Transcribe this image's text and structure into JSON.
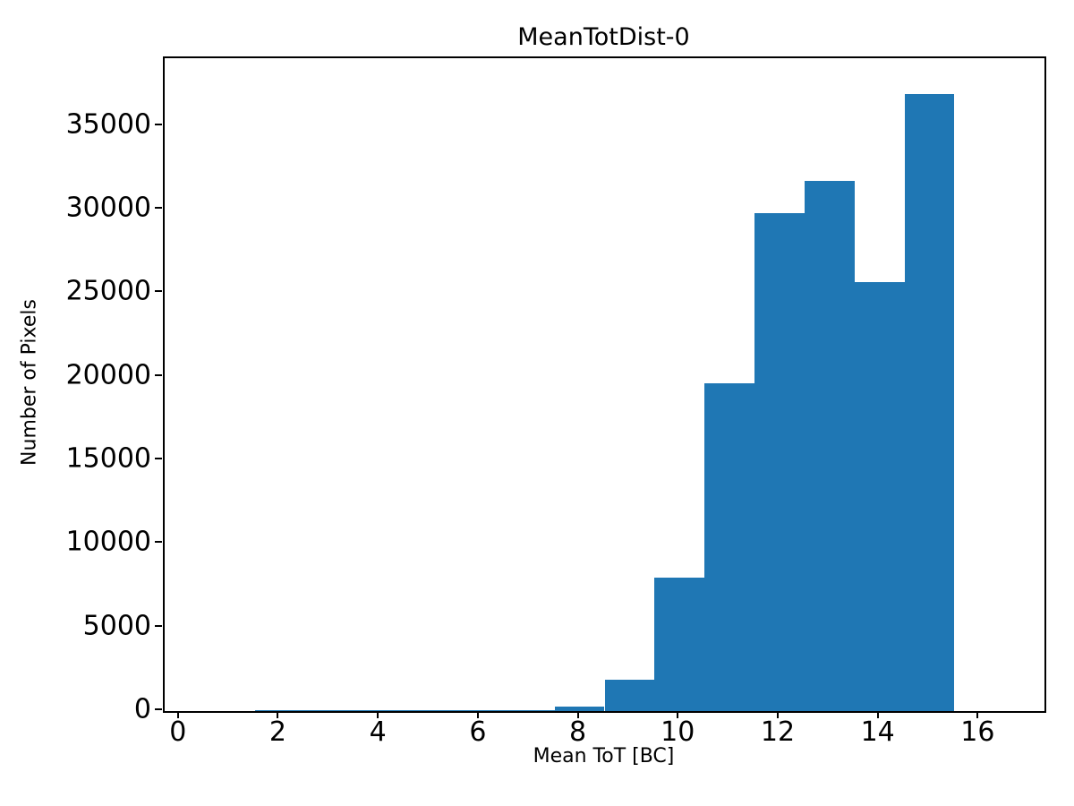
{
  "chart_data": {
    "type": "bar",
    "subtype": "histogram",
    "title": "MeanTotDist-0",
    "xlabel": "Mean ToT [BC]",
    "ylabel": "Number of Pixels",
    "bin_edges": [
      1.5,
      2.5,
      3.5,
      4.5,
      5.5,
      6.5,
      7.5,
      8.5,
      9.5,
      10.5,
      11.5,
      12.5,
      13.5,
      14.5,
      15.5
    ],
    "counts": [
      80,
      80,
      80,
      80,
      80,
      80,
      250,
      1900,
      8000,
      19600,
      29800,
      31700,
      25650,
      36900
    ],
    "xlim": [
      -0.3,
      17.3
    ],
    "ylim": [
      0,
      39050
    ],
    "xticks": [
      0,
      2,
      4,
      6,
      8,
      10,
      12,
      14,
      16
    ],
    "yticks": [
      0,
      5000,
      10000,
      15000,
      20000,
      25000,
      30000,
      35000
    ],
    "grid": false,
    "legend_position": "none",
    "bar_color": "#1f77b4",
    "axis_color": "#000000",
    "text_color": "#000000",
    "background_color": "#ffffff"
  }
}
